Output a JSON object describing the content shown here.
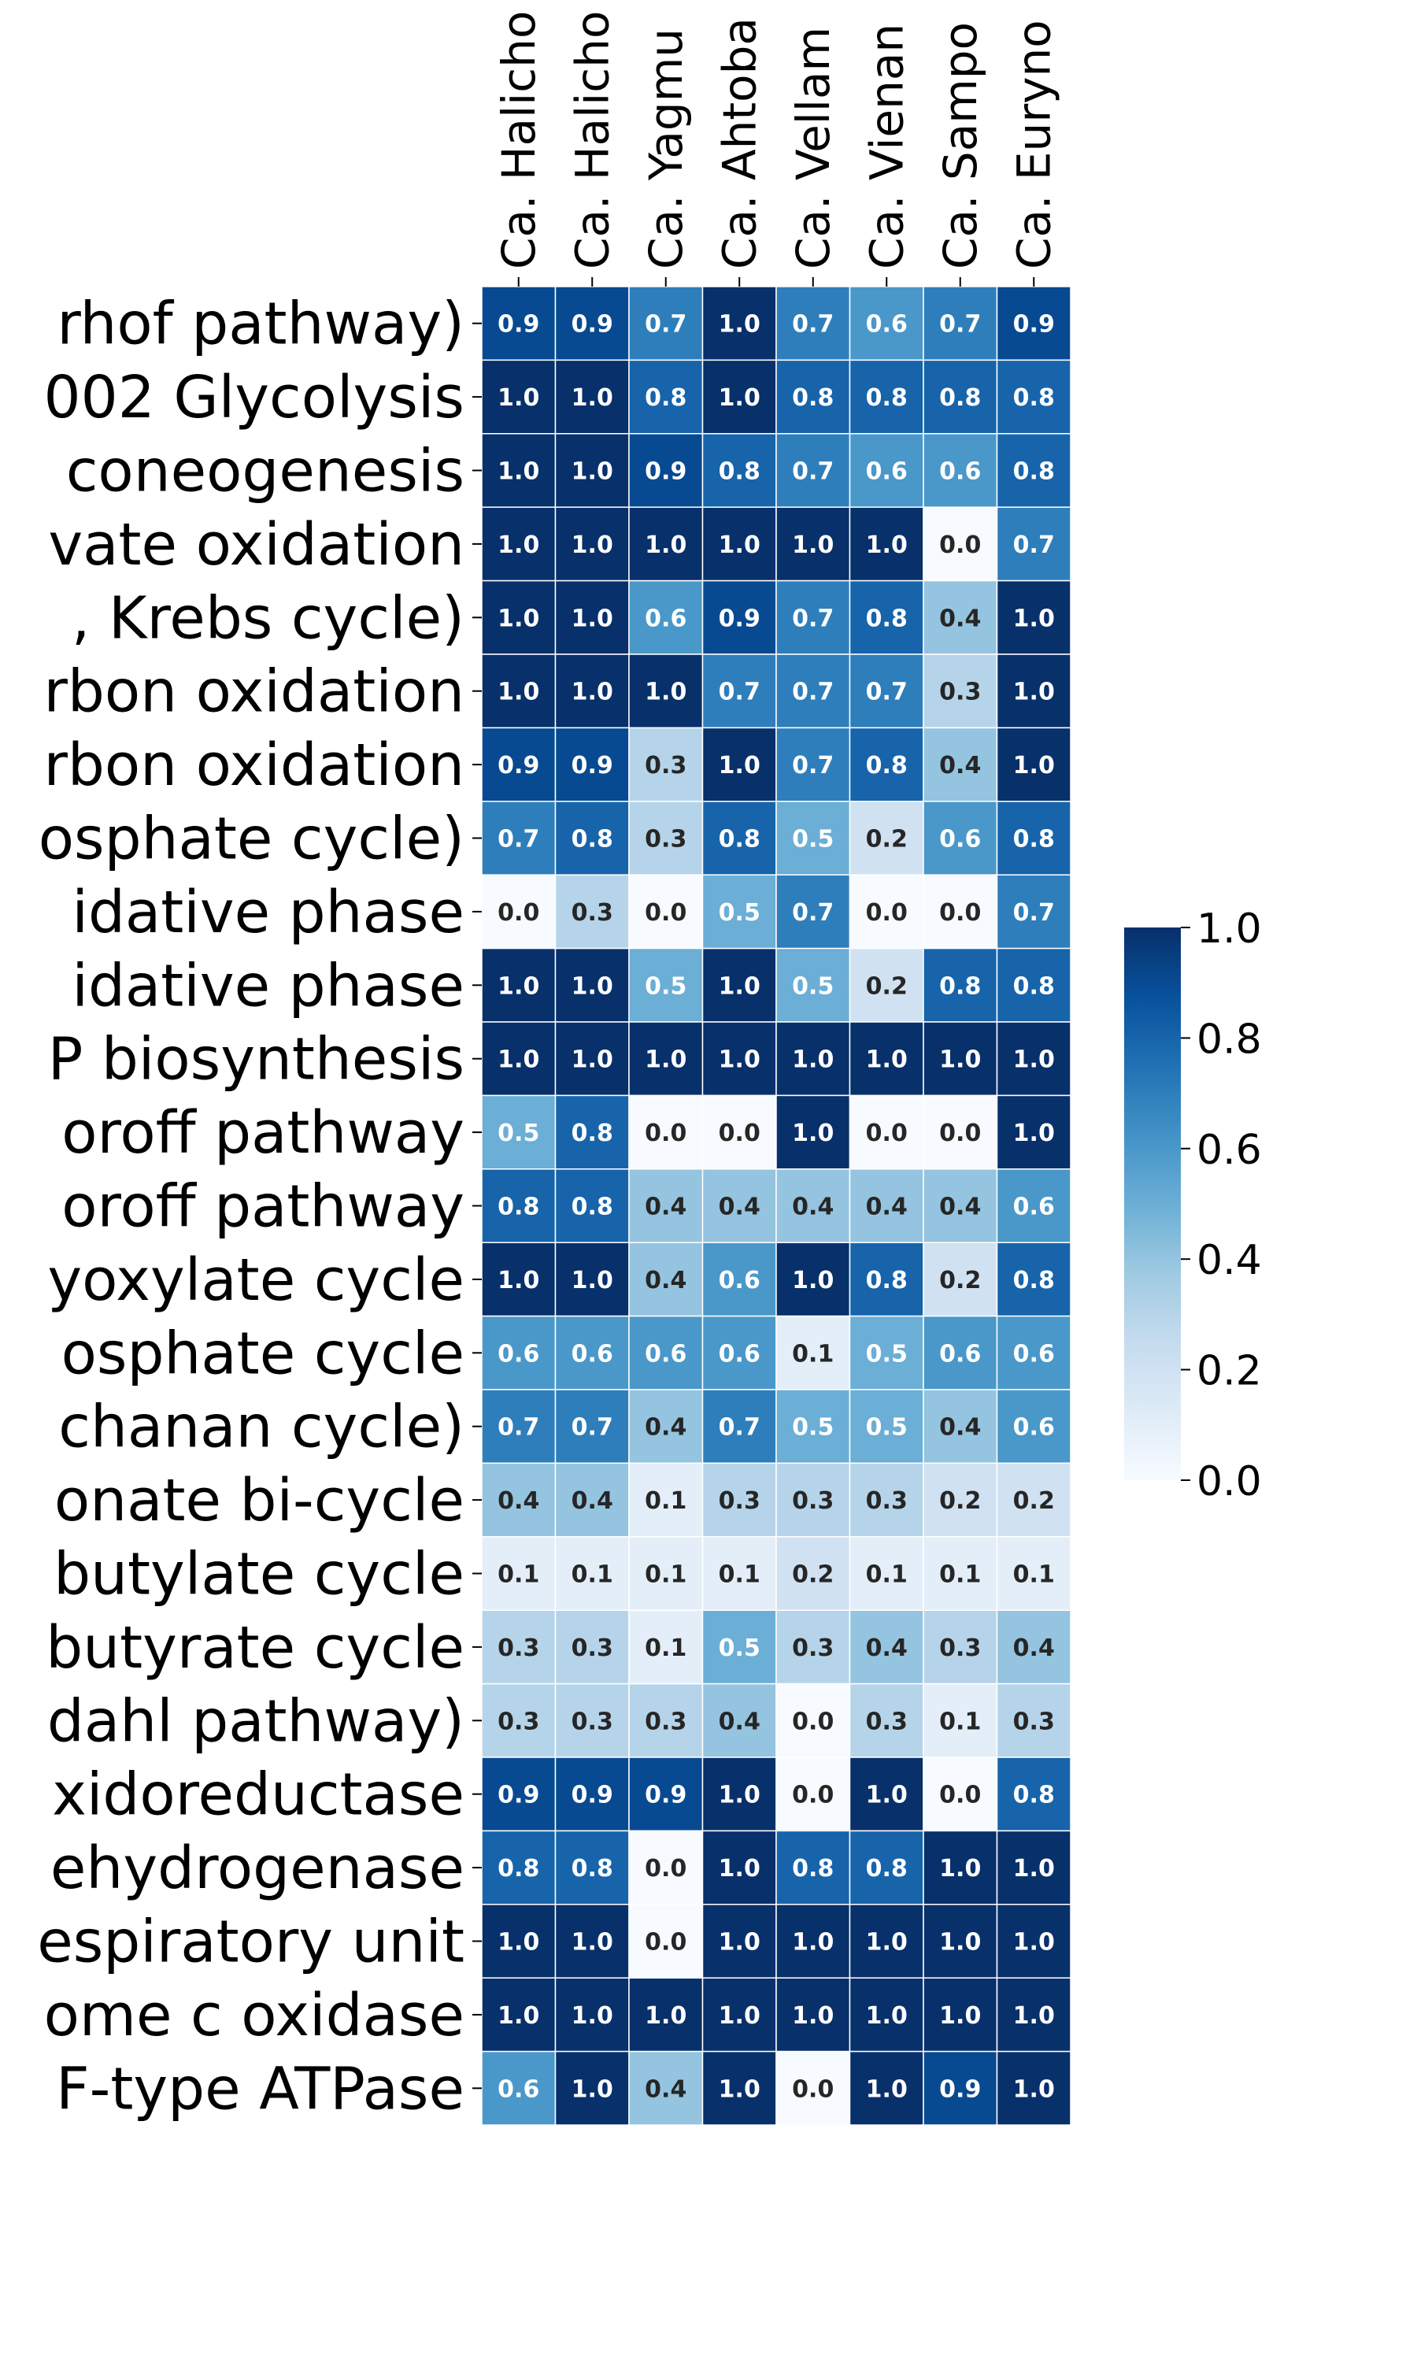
{
  "chart_data": {
    "type": "heatmap",
    "title": "",
    "xlabel": "",
    "ylabel": "",
    "x_labels": [
      "Ca. Halicho",
      "Ca. Halicho",
      "Ca. Yagmu",
      "Ca. Ahtoba",
      "Ca. Vellam",
      "Ca. Vienan",
      "Ca. Sampo",
      "Ca. Euryno"
    ],
    "y_labels": [
      "rhof pathway)",
      "002 Glycolysis",
      "coneogenesis",
      "vate oxidation",
      ", Krebs cycle)",
      "rbon oxidation",
      "rbon oxidation",
      "osphate cycle)",
      "idative phase",
      "idative phase",
      "P biosynthesis",
      "oroff pathway",
      "oroff pathway",
      "yoxylate cycle",
      "osphate cycle",
      "chanan cycle)",
      "onate bi-cycle",
      "butylate cycle",
      "butyrate cycle",
      "dahl pathway)",
      "xidoreductase",
      "ehydrogenase",
      "espiratory unit",
      "ome c oxidase",
      "F-type ATPase"
    ],
    "values": [
      [
        0.9,
        0.9,
        0.7,
        1.0,
        0.7,
        0.6,
        0.7,
        0.9
      ],
      [
        1.0,
        1.0,
        0.8,
        1.0,
        0.8,
        0.8,
        0.8,
        0.8
      ],
      [
        1.0,
        1.0,
        0.9,
        0.8,
        0.7,
        0.6,
        0.6,
        0.8
      ],
      [
        1.0,
        1.0,
        1.0,
        1.0,
        1.0,
        1.0,
        0.0,
        0.7
      ],
      [
        1.0,
        1.0,
        0.6,
        0.9,
        0.7,
        0.8,
        0.4,
        1.0
      ],
      [
        1.0,
        1.0,
        1.0,
        0.7,
        0.7,
        0.7,
        0.3,
        1.0
      ],
      [
        0.9,
        0.9,
        0.3,
        1.0,
        0.7,
        0.8,
        0.4,
        1.0
      ],
      [
        0.7,
        0.8,
        0.3,
        0.8,
        0.5,
        0.2,
        0.6,
        0.8
      ],
      [
        0.0,
        0.3,
        0.0,
        0.5,
        0.7,
        0.0,
        0.0,
        0.7
      ],
      [
        1.0,
        1.0,
        0.5,
        1.0,
        0.5,
        0.2,
        0.8,
        0.8
      ],
      [
        1.0,
        1.0,
        1.0,
        1.0,
        1.0,
        1.0,
        1.0,
        1.0
      ],
      [
        0.5,
        0.8,
        0.0,
        0.0,
        1.0,
        0.0,
        0.0,
        1.0
      ],
      [
        0.8,
        0.8,
        0.4,
        0.4,
        0.4,
        0.4,
        0.4,
        0.6
      ],
      [
        1.0,
        1.0,
        0.4,
        0.6,
        1.0,
        0.8,
        0.2,
        0.8
      ],
      [
        0.6,
        0.6,
        0.6,
        0.6,
        0.1,
        0.5,
        0.6,
        0.6
      ],
      [
        0.7,
        0.7,
        0.4,
        0.7,
        0.5,
        0.5,
        0.4,
        0.6
      ],
      [
        0.4,
        0.4,
        0.1,
        0.3,
        0.3,
        0.3,
        0.2,
        0.2
      ],
      [
        0.1,
        0.1,
        0.1,
        0.1,
        0.2,
        0.1,
        0.1,
        0.1
      ],
      [
        0.3,
        0.3,
        0.1,
        0.5,
        0.3,
        0.4,
        0.3,
        0.4
      ],
      [
        0.3,
        0.3,
        0.3,
        0.4,
        0.0,
        0.3,
        0.1,
        0.3
      ],
      [
        0.9,
        0.9,
        0.9,
        1.0,
        0.0,
        1.0,
        0.0,
        0.8
      ],
      [
        0.8,
        0.8,
        0.0,
        1.0,
        0.8,
        0.8,
        1.0,
        1.0
      ],
      [
        1.0,
        1.0,
        0.0,
        1.0,
        1.0,
        1.0,
        1.0,
        1.0
      ],
      [
        1.0,
        1.0,
        1.0,
        1.0,
        1.0,
        1.0,
        1.0,
        1.0
      ],
      [
        0.6,
        1.0,
        0.4,
        1.0,
        0.0,
        1.0,
        0.9,
        1.0
      ]
    ],
    "colormap": "Blues",
    "vmin": 0.0,
    "vmax": 1.0,
    "annotations": "values shown in each cell with one decimal",
    "grid": false,
    "colorbar": {
      "ticks": [
        "0.0",
        "0.2",
        "0.4",
        "0.6",
        "0.8",
        "1.0"
      ],
      "placement": "right"
    },
    "colors": {
      "low": "#f7fbff",
      "high": "#08306b",
      "text_dark": "#262626",
      "text_light": "#ffffff"
    }
  }
}
